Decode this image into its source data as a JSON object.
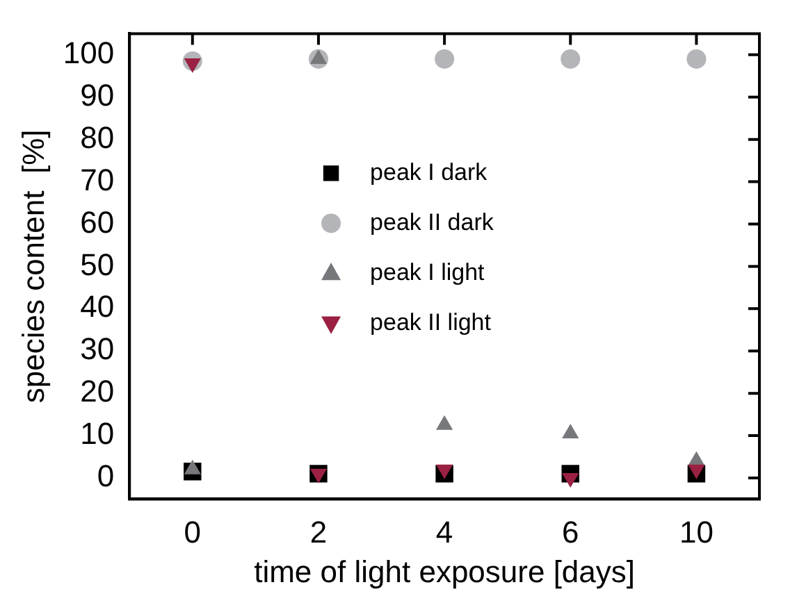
{
  "chart_data": {
    "type": "scatter",
    "xlabel": "time of light exposure [days]",
    "ylabel": "species content  [%]",
    "categories": [
      "0",
      "2",
      "4",
      "6",
      "10"
    ],
    "series": [
      {
        "name": "peak I dark",
        "color": "#000000",
        "marker": "square",
        "values": [
          1.5,
          1,
          1,
          1,
          1
        ]
      },
      {
        "name": "peak II dark",
        "color": "#b4b5b9",
        "marker": "circle",
        "values": [
          98.5,
          99,
          99,
          99,
          99
        ]
      },
      {
        "name": "peak I light",
        "color": "#77787c",
        "marker": "triangle",
        "values": [
          2,
          99,
          12.5,
          10.5,
          4
        ]
      },
      {
        "name": "peak II light",
        "color": "#9a2142",
        "marker": "triangle_down",
        "values": [
          98,
          1,
          2,
          0,
          2
        ]
      }
    ],
    "ylim": [
      -5,
      105
    ],
    "yticks": [
      0,
      10,
      20,
      30,
      40,
      50,
      60,
      70,
      80,
      90,
      100
    ],
    "grid": false,
    "legend": "center"
  }
}
